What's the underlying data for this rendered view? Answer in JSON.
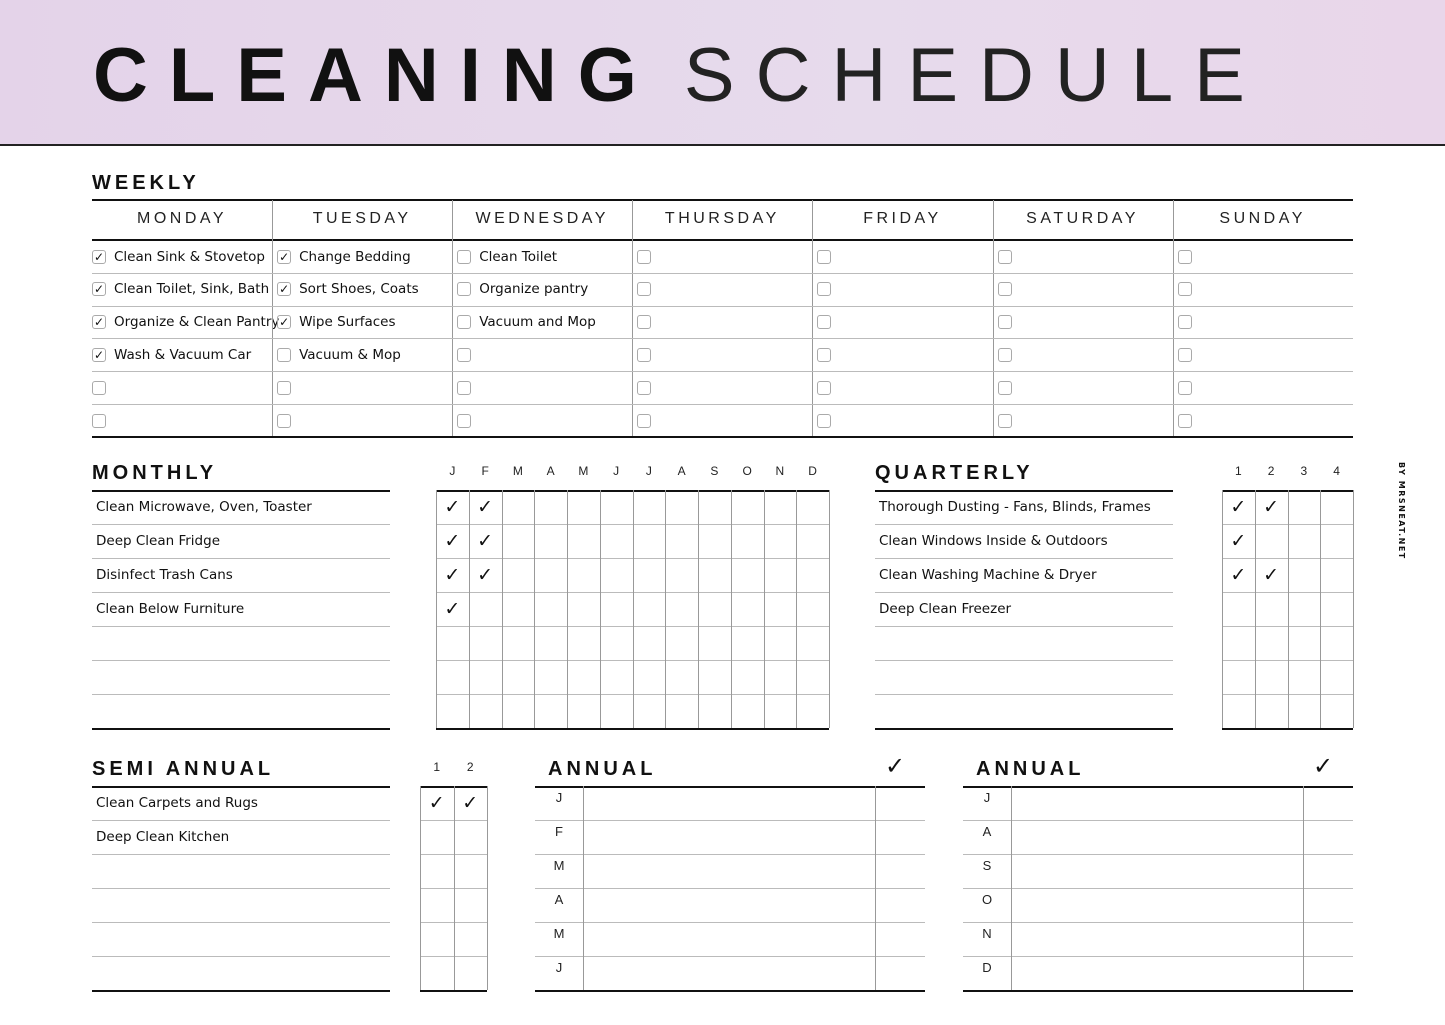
{
  "header": {
    "title_bold": "CLEANING",
    "title_light": "SCHEDULE"
  },
  "credit": "BY MRSNEAT.NET",
  "weekly": {
    "label": "WEEKLY",
    "days": [
      {
        "name": "MONDAY",
        "tasks": [
          {
            "t": "Clean Sink & Stovetop",
            "c": true
          },
          {
            "t": "Clean Toilet, Sink, Bath",
            "c": true
          },
          {
            "t": "Organize & Clean Pantry",
            "c": true
          },
          {
            "t": "Wash & Vacuum Car",
            "c": true
          },
          {
            "t": "",
            "c": false
          },
          {
            "t": "",
            "c": false
          }
        ]
      },
      {
        "name": "TUESDAY",
        "tasks": [
          {
            "t": "Change Bedding",
            "c": true
          },
          {
            "t": "Sort Shoes, Coats",
            "c": true
          },
          {
            "t": "Wipe Surfaces",
            "c": true
          },
          {
            "t": "Vacuum & Mop",
            "c": false
          },
          {
            "t": "",
            "c": false
          },
          {
            "t": "",
            "c": false
          }
        ]
      },
      {
        "name": "WEDNESDAY",
        "tasks": [
          {
            "t": "Clean Toilet",
            "c": false
          },
          {
            "t": "Organize pantry",
            "c": false
          },
          {
            "t": "Vacuum and Mop",
            "c": false
          },
          {
            "t": "",
            "c": false
          },
          {
            "t": "",
            "c": false
          },
          {
            "t": "",
            "c": false
          }
        ]
      },
      {
        "name": "THURSDAY",
        "tasks": [
          {
            "t": "",
            "c": false
          },
          {
            "t": "",
            "c": false
          },
          {
            "t": "",
            "c": false
          },
          {
            "t": "",
            "c": false
          },
          {
            "t": "",
            "c": false
          },
          {
            "t": "",
            "c": false
          }
        ]
      },
      {
        "name": "FRIDAY",
        "tasks": [
          {
            "t": "",
            "c": false
          },
          {
            "t": "",
            "c": false
          },
          {
            "t": "",
            "c": false
          },
          {
            "t": "",
            "c": false
          },
          {
            "t": "",
            "c": false
          },
          {
            "t": "",
            "c": false
          }
        ]
      },
      {
        "name": "SATURDAY",
        "tasks": [
          {
            "t": "",
            "c": false
          },
          {
            "t": "",
            "c": false
          },
          {
            "t": "",
            "c": false
          },
          {
            "t": "",
            "c": false
          },
          {
            "t": "",
            "c": false
          },
          {
            "t": "",
            "c": false
          }
        ]
      },
      {
        "name": "SUNDAY",
        "tasks": [
          {
            "t": "",
            "c": false
          },
          {
            "t": "",
            "c": false
          },
          {
            "t": "",
            "c": false
          },
          {
            "t": "",
            "c": false
          },
          {
            "t": "",
            "c": false
          },
          {
            "t": "",
            "c": false
          }
        ]
      }
    ]
  },
  "monthly": {
    "label": "MONTHLY",
    "columns": [
      "J",
      "F",
      "M",
      "A",
      "M",
      "J",
      "J",
      "A",
      "S",
      "O",
      "N",
      "D"
    ],
    "tasks": [
      {
        "t": "Clean Microwave, Oven, Toaster",
        "done": [
          0,
          1
        ]
      },
      {
        "t": "Deep Clean Fridge",
        "done": [
          0,
          1
        ]
      },
      {
        "t": "Disinfect Trash Cans",
        "done": [
          0,
          1
        ]
      },
      {
        "t": "Clean Below Furniture",
        "done": [
          0
        ]
      },
      {
        "t": "",
        "done": []
      },
      {
        "t": "",
        "done": []
      },
      {
        "t": "",
        "done": []
      }
    ]
  },
  "quarterly": {
    "label": "QUARTERLY",
    "columns": [
      "1",
      "2",
      "3",
      "4"
    ],
    "tasks": [
      {
        "t": "Thorough Dusting - Fans, Blinds, Frames",
        "done": [
          0,
          1
        ]
      },
      {
        "t": "Clean Windows Inside & Outdoors",
        "done": [
          0
        ]
      },
      {
        "t": "Clean Washing Machine & Dryer",
        "done": [
          0,
          1
        ]
      },
      {
        "t": "Deep Clean Freezer",
        "done": []
      },
      {
        "t": "",
        "done": []
      },
      {
        "t": "",
        "done": []
      },
      {
        "t": "",
        "done": []
      }
    ]
  },
  "semi_annual": {
    "label": "SEMI ANNUAL",
    "columns": [
      "1",
      "2"
    ],
    "tasks": [
      {
        "t": "Carpets",
        "done": [
          0,
          1
        ]
      }
    ]
  },
  "semi_tasks": [
    {
      "t": "Clean Carpets and Rugs",
      "done": [
        0,
        1
      ]
    },
    {
      "t": "Deep Clean Kitchen",
      "done": []
    },
    {
      "t": "",
      "done": []
    },
    {
      "t": "",
      "done": []
    },
    {
      "t": "",
      "done": []
    },
    {
      "t": "",
      "done": []
    }
  ],
  "annual": [
    {
      "label": "ANNUAL",
      "check_header": "✓",
      "months": [
        "J",
        "F",
        "M",
        "A",
        "M",
        "J"
      ]
    },
    {
      "label": "ANNUAL",
      "check_header": "✓",
      "months": [
        "J",
        "A",
        "S",
        "O",
        "N",
        "D"
      ]
    }
  ],
  "check_glyph": "✓"
}
